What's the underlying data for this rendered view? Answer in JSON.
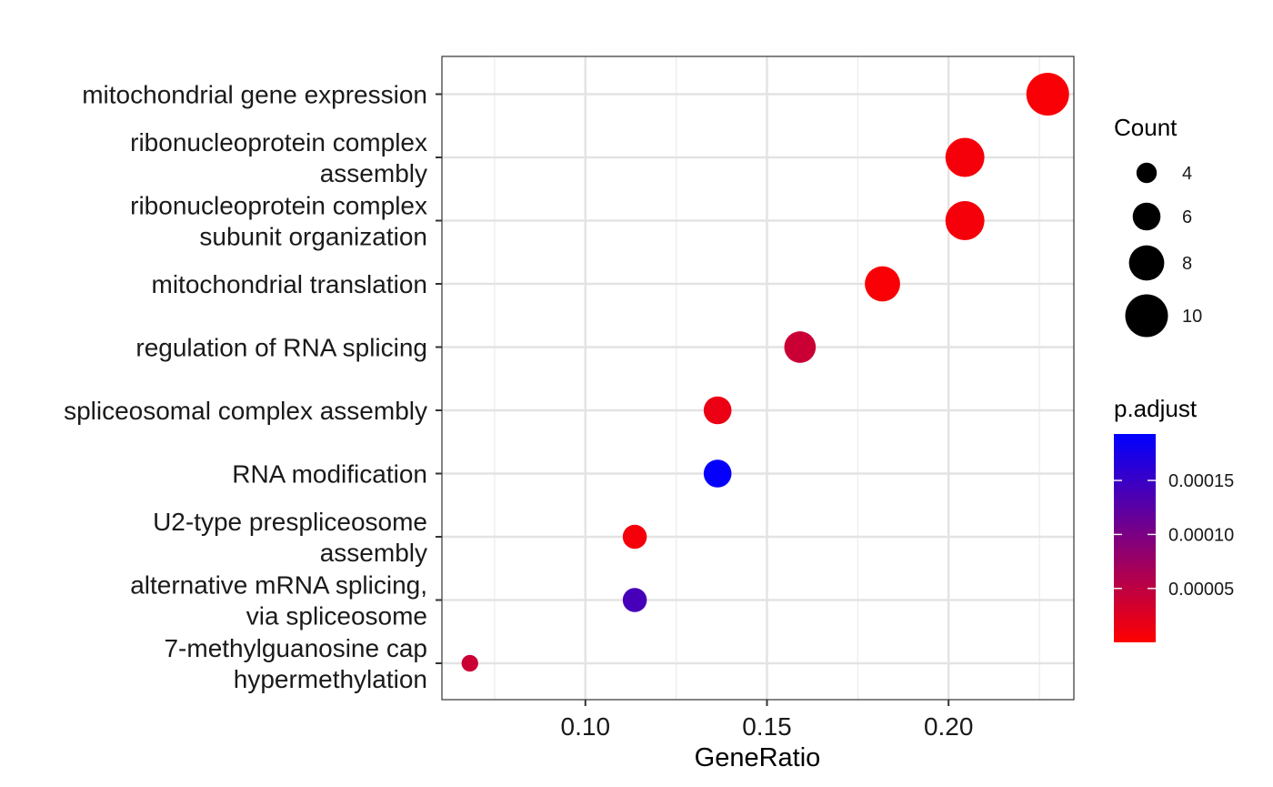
{
  "chart_data": {
    "type": "scatter",
    "xlabel": "GeneRatio",
    "ylabel": "",
    "xlim": [
      0.0605,
      0.2345
    ],
    "x_ticks": [
      0.1,
      0.15,
      0.2
    ],
    "x_tick_labels": [
      "0.10",
      "0.15",
      "0.20"
    ],
    "grid": true,
    "categories": [
      [
        "mitochondrial gene expression"
      ],
      [
        "ribonucleoprotein complex",
        "assembly"
      ],
      [
        "ribonucleoprotein complex",
        "subunit organization"
      ],
      [
        "mitochondrial translation"
      ],
      [
        "regulation of RNA splicing"
      ],
      [
        "spliceosomal complex assembly"
      ],
      [
        "RNA modification"
      ],
      [
        "U2-type prespliceosome",
        "assembly"
      ],
      [
        "alternative mRNA splicing,",
        "via spliceosome"
      ],
      [
        "7-methylguanosine cap",
        "hypermethylation"
      ]
    ],
    "points": [
      {
        "x": 0.2273,
        "count": 10,
        "p_adjust": 5e-06
      },
      {
        "x": 0.2045,
        "count": 9,
        "p_adjust": 8e-06
      },
      {
        "x": 0.2045,
        "count": 9,
        "p_adjust": 8e-06
      },
      {
        "x": 0.1818,
        "count": 8,
        "p_adjust": 5e-06
      },
      {
        "x": 0.1591,
        "count": 7,
        "p_adjust": 4e-05
      },
      {
        "x": 0.1364,
        "count": 6,
        "p_adjust": 1.5e-05
      },
      {
        "x": 0.1364,
        "count": 6,
        "p_adjust": 0.00019
      },
      {
        "x": 0.1136,
        "count": 5,
        "p_adjust": 8e-06
      },
      {
        "x": 0.1136,
        "count": 5,
        "p_adjust": 0.00014
      },
      {
        "x": 0.0682,
        "count": 3,
        "p_adjust": 4e-05
      }
    ],
    "size_legend": {
      "title": "Count",
      "values": [
        4,
        6,
        8,
        10
      ],
      "labels": [
        "4",
        "6",
        "8",
        "10"
      ]
    },
    "color_legend": {
      "title": "p.adjust",
      "range": [
        1e-07,
        0.000193
      ],
      "ticks": [
        5e-05,
        0.0001,
        0.00015
      ],
      "tick_labels": [
        "0.00005",
        "0.00010",
        "0.00015"
      ],
      "low_color": "#ff0000",
      "high_color": "#0000ff"
    },
    "legend_position": "right"
  }
}
